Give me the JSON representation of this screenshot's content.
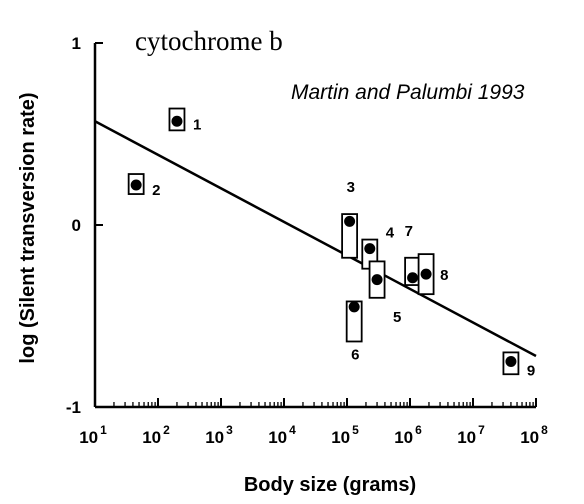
{
  "chart_data": {
    "type": "scatter",
    "title": "cytochrome b",
    "annotation": "Martin and Palumbi 1993",
    "xlabel": "Body size (grams)",
    "ylabel": "log (Silent transversion rate)",
    "x_scale": "log",
    "xlim": [
      10,
      100000000
    ],
    "ylim": [
      -1,
      1
    ],
    "x_ticks": [
      {
        "base": "10",
        "exp": "1",
        "value": 10
      },
      {
        "base": "10",
        "exp": "2",
        "value": 100
      },
      {
        "base": "10",
        "exp": "3",
        "value": 1000
      },
      {
        "base": "10",
        "exp": "4",
        "value": 10000
      },
      {
        "base": "10",
        "exp": "5",
        "value": 100000
      },
      {
        "base": "10",
        "exp": "6",
        "value": 1000000
      },
      {
        "base": "10",
        "exp": "7",
        "value": 10000000
      },
      {
        "base": "10",
        "exp": "8",
        "value": 100000000
      }
    ],
    "y_ticks": [
      {
        "label": "1",
        "value": 1
      },
      {
        "label": "0",
        "value": 0
      },
      {
        "label": "-1",
        "value": -1
      }
    ],
    "points": [
      {
        "label": "1",
        "x": 200,
        "y": 0.57,
        "low": 0.52,
        "high": 0.64
      },
      {
        "label": "2",
        "x": 45,
        "y": 0.22,
        "low": 0.17,
        "high": 0.28
      },
      {
        "label": "3",
        "x": 110000,
        "y": 0.02,
        "low": -0.18,
        "high": 0.06
      },
      {
        "label": "4",
        "x": 230000,
        "y": -0.13,
        "low": -0.24,
        "high": -0.08
      },
      {
        "label": "5",
        "x": 300000,
        "y": -0.3,
        "low": -0.4,
        "high": -0.2
      },
      {
        "label": "6",
        "x": 130000,
        "y": -0.45,
        "low": -0.64,
        "high": -0.42
      },
      {
        "label": "7",
        "x": 1100000,
        "y": -0.29,
        "low": -0.33,
        "high": -0.18
      },
      {
        "label": "8",
        "x": 1800000,
        "y": -0.27,
        "low": -0.38,
        "high": -0.16
      },
      {
        "label": "9",
        "x": 40000000,
        "y": -0.75,
        "low": -0.82,
        "high": -0.7
      }
    ],
    "regression_line": {
      "x": [
        10,
        100000000
      ],
      "y": [
        0.57,
        -0.72
      ]
    },
    "grid": false,
    "legend": "none",
    "colors": {
      "ink": "#000000",
      "box_fill": "#ffffff",
      "background": "#ffffff"
    }
  }
}
